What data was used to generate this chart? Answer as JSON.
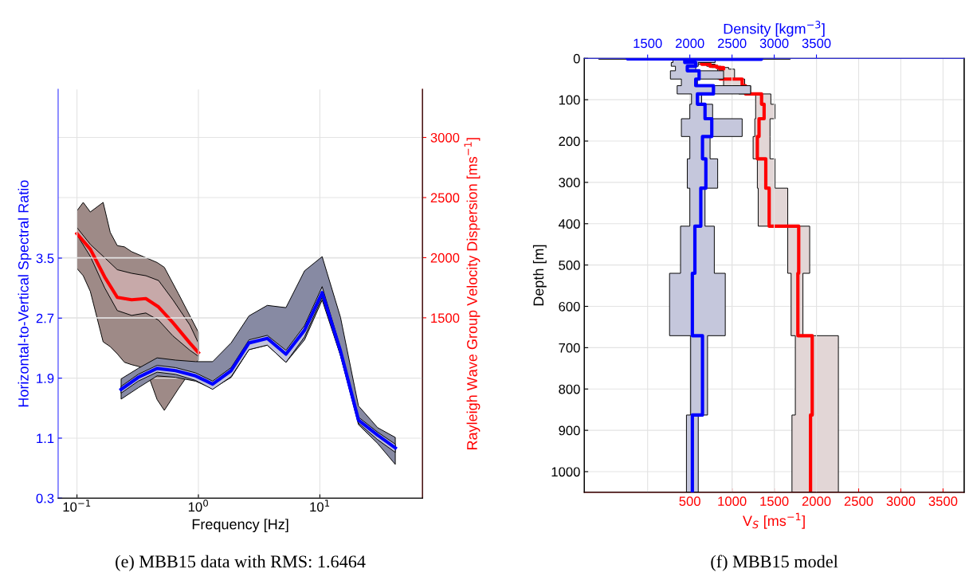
{
  "chart_data": [
    {
      "type": "line",
      "xlabel": "Frequency [Hz]",
      "ylabel": "Horizontal-to-Vertical Spectral Ratio",
      "y2label": "Rayleigh Wave Group Velocity Dispersion [ms$^{−1}$]",
      "log": "x",
      "grid": true,
      "xlim": [
        0.07,
        70
      ],
      "xticks": [
        {
          "value": 0.1,
          "label": "10$^{−1}$"
        },
        {
          "value": 1,
          "label": "10$^{0}$"
        },
        {
          "value": 10,
          "label": "10$^{1}$"
        }
      ],
      "ylim": [
        0.3,
        5.75
      ],
      "yticks": [
        0.3,
        1.1,
        1.9,
        2.7,
        3.5
      ],
      "y2lim": [
        0,
        3400
      ],
      "y2ticks": [
        1500,
        2000,
        2500,
        3000
      ],
      "annotations": [
        "(e) MBB15 data with RMS: 1.6464"
      ],
      "series": [
        {
          "type": "area",
          "axis": "y2",
          "color": "#9e8a87",
          "x": [
            0.1,
            0.1126,
            0.1288,
            0.1643,
            0.188,
            0.215,
            0.246,
            0.282,
            0.369,
            0.457,
            0.524,
            0.685,
            1.0
          ],
          "lower": [
            1910,
            1850,
            1720,
            1300,
            1260,
            1200,
            1130,
            1110,
            1080,
            820,
            730,
            910,
            1150
          ],
          "upper": [
            2390,
            2460,
            2380,
            2460,
            2210,
            2100,
            2090,
            2050,
            2000,
            1960,
            1920,
            1700,
            1380
          ],
          "values": [
            null,
            null,
            null,
            null,
            null,
            null,
            null,
            null,
            null,
            null,
            null,
            null,
            null
          ]
        },
        {
          "type": "area",
          "axis": "y2",
          "color": "#c7a9a9",
          "x": [
            0.1,
            0.129,
            0.169,
            0.215,
            0.282,
            0.369,
            0.47,
            0.616,
            0.851,
            1.0
          ],
          "lower": [
            2190,
            2010,
            1750,
            1560,
            1520,
            1540,
            1480,
            1350,
            1230,
            1180
          ],
          "upper": [
            2250,
            2110,
            2000,
            1900,
            1870,
            1850,
            1810,
            1650,
            1440,
            1290
          ],
          "values": [
            null,
            null,
            null,
            null,
            null,
            null,
            null,
            null,
            null,
            null
          ]
        },
        {
          "type": "line",
          "axis": "y2",
          "color": "#ff0000",
          "x": [
            0.1,
            0.129,
            0.169,
            0.215,
            0.282,
            0.369,
            0.47,
            0.616,
            0.851,
            1.0
          ],
          "values": [
            2200,
            2070,
            1840,
            1670,
            1650,
            1660,
            1590,
            1460,
            1290,
            1210
          ]
        },
        {
          "type": "area",
          "color": "#878aa3",
          "x": [
            0.231,
            0.319,
            0.457,
            0.65,
            0.948,
            1.31,
            1.86,
            2.61,
            3.69,
            5.26,
            7.48,
            10.45,
            14.8,
            20.8,
            29.9,
            41.8
          ],
          "lower": [
            1.62,
            1.77,
            1.93,
            1.91,
            1.86,
            1.76,
            1.91,
            2.28,
            2.34,
            2.11,
            2.41,
            2.94,
            2.2,
            1.28,
            1.03,
            0.75
          ],
          "upper": [
            1.89,
            2.03,
            2.17,
            2.14,
            2.12,
            2.12,
            2.37,
            2.73,
            2.87,
            2.84,
            3.33,
            3.52,
            2.71,
            1.53,
            1.24,
            1.11
          ],
          "values": [
            null,
            null,
            null,
            null,
            null,
            null,
            null,
            null,
            null,
            null,
            null,
            null,
            null,
            null,
            null,
            null
          ]
        },
        {
          "type": "area",
          "color": "#c2c3dc",
          "x": [
            0.231,
            0.319,
            0.457,
            0.65,
            0.948,
            1.31,
            1.86,
            2.61,
            3.69,
            5.26,
            7.48,
            10.45,
            14.8,
            20.8,
            29.9,
            41.8
          ],
          "lower": [
            1.7,
            1.86,
            1.98,
            1.95,
            1.87,
            1.75,
            1.92,
            2.28,
            2.34,
            2.11,
            2.45,
            2.98,
            2.2,
            1.3,
            1.08,
            0.91
          ],
          "upper": [
            1.79,
            1.95,
            2.07,
            2.04,
            1.97,
            1.86,
            2.04,
            2.41,
            2.47,
            2.27,
            2.6,
            3.12,
            2.3,
            1.38,
            1.18,
            1.02
          ],
          "values": [
            null,
            null,
            null,
            null,
            null,
            null,
            null,
            null,
            null,
            null,
            null,
            null,
            null,
            null,
            null,
            null
          ]
        },
        {
          "type": "line",
          "color": "#0000ff",
          "x": [
            0.231,
            0.319,
            0.457,
            0.65,
            0.948,
            1.31,
            1.86,
            2.61,
            3.69,
            5.26,
            7.48,
            10.45,
            14.8,
            20.8,
            29.9,
            41.8
          ],
          "values": [
            1.75,
            1.91,
            2.03,
            2.0,
            1.93,
            1.82,
            2.0,
            2.37,
            2.43,
            2.22,
            2.54,
            3.04,
            2.26,
            1.34,
            1.14,
            0.97
          ]
        }
      ]
    },
    {
      "type": "step",
      "orientation": "horizontal",
      "ylabel": "Depth [m]",
      "xlabel": "V$_{S}$ [ms$^{−1}$]",
      "x2label": "Density [kgm$^{−3}$]",
      "grid": true,
      "ylim": [
        1050,
        0
      ],
      "yticks": [
        0,
        100,
        200,
        300,
        400,
        500,
        600,
        700,
        800,
        900,
        1000
      ],
      "xlim": [
        -750,
        3750
      ],
      "xticks": [
        500,
        1000,
        1500,
        2000,
        2500,
        3000,
        3500
      ],
      "x2lim": [
        750,
        5250
      ],
      "x2ticks": [
        1500,
        2000,
        2500,
        3000,
        3500
      ],
      "annotations": [
        "(f) MBB15 model"
      ],
      "series": [
        {
          "type": "area",
          "color": "#e2d6d6",
          "x": [
            6,
            10,
            14,
            19,
            22,
            26,
            50,
            66,
            86,
            111,
            146,
            189,
            243,
            314,
            406,
            520,
            671,
            863,
            1050
          ],
          "lower": [
            440,
            560,
            700,
            760,
            860,
            830,
            900,
            1080,
            1280,
            1280,
            1270,
            1250,
            1300,
            1310,
            1660,
            1700,
            1750,
            1710,
            1710
          ],
          "upper": [
            560,
            720,
            800,
            870,
            960,
            1030,
            1150,
            1220,
            1460,
            1510,
            1450,
            1450,
            1510,
            1660,
            1920,
            1840,
            2260,
            2260,
            2260
          ],
          "values": [
            null,
            null,
            null,
            null,
            null,
            null,
            null,
            null,
            null,
            null,
            null,
            null,
            null,
            null,
            null,
            null,
            null,
            null,
            null
          ]
        },
        {
          "type": "area",
          "axis": "x2",
          "color": "#c5c7dc",
          "x": [
            0,
            1,
            2,
            10,
            19,
            30,
            50,
            66,
            86,
            111,
            146,
            189,
            243,
            314,
            406,
            520,
            671,
            863,
            1050
          ],
          "lower": [
            920,
            920,
            1800,
            1780,
            1830,
            1770,
            1900,
            1850,
            2020,
            2000,
            1900,
            2000,
            1970,
            2000,
            1890,
            1760,
            2010,
            1960,
            1960
          ],
          "upper": [
            3190,
            3190,
            2300,
            2100,
            2070,
            2400,
            2090,
            2720,
            2140,
            2270,
            2620,
            2240,
            2330,
            2180,
            2290,
            2420,
            2210,
            2100,
            2100
          ],
          "values": [
            null,
            null,
            null,
            null,
            null,
            null,
            null,
            null,
            null,
            null,
            null,
            null,
            null,
            null,
            null,
            null,
            null,
            null,
            null
          ]
        },
        {
          "type": "step",
          "color": "#ff0000",
          "x": [
            10,
            14,
            19,
            22,
            26,
            50,
            66,
            86,
            111,
            146,
            189,
            243,
            314,
            406,
            520,
            671,
            863,
            1050
          ],
          "values": [
            640,
            740,
            820,
            900,
            860,
            1120,
            1160,
            1350,
            1380,
            1320,
            1300,
            1400,
            1440,
            1790,
            1780,
            1950,
            1930,
            1930
          ]
        },
        {
          "type": "step",
          "axis": "x2",
          "color": "#0000ff",
          "x": [
            0,
            1,
            2,
            10,
            19,
            30,
            50,
            66,
            86,
            111,
            146,
            189,
            243,
            314,
            406,
            520,
            671,
            863,
            1050
          ],
          "values": [
            1260,
            2850,
            1940,
            2070,
            1970,
            2110,
            2070,
            2280,
            2090,
            2180,
            2260,
            2150,
            2190,
            2130,
            2060,
            2030,
            2150,
            2030,
            2030
          ]
        }
      ]
    }
  ]
}
